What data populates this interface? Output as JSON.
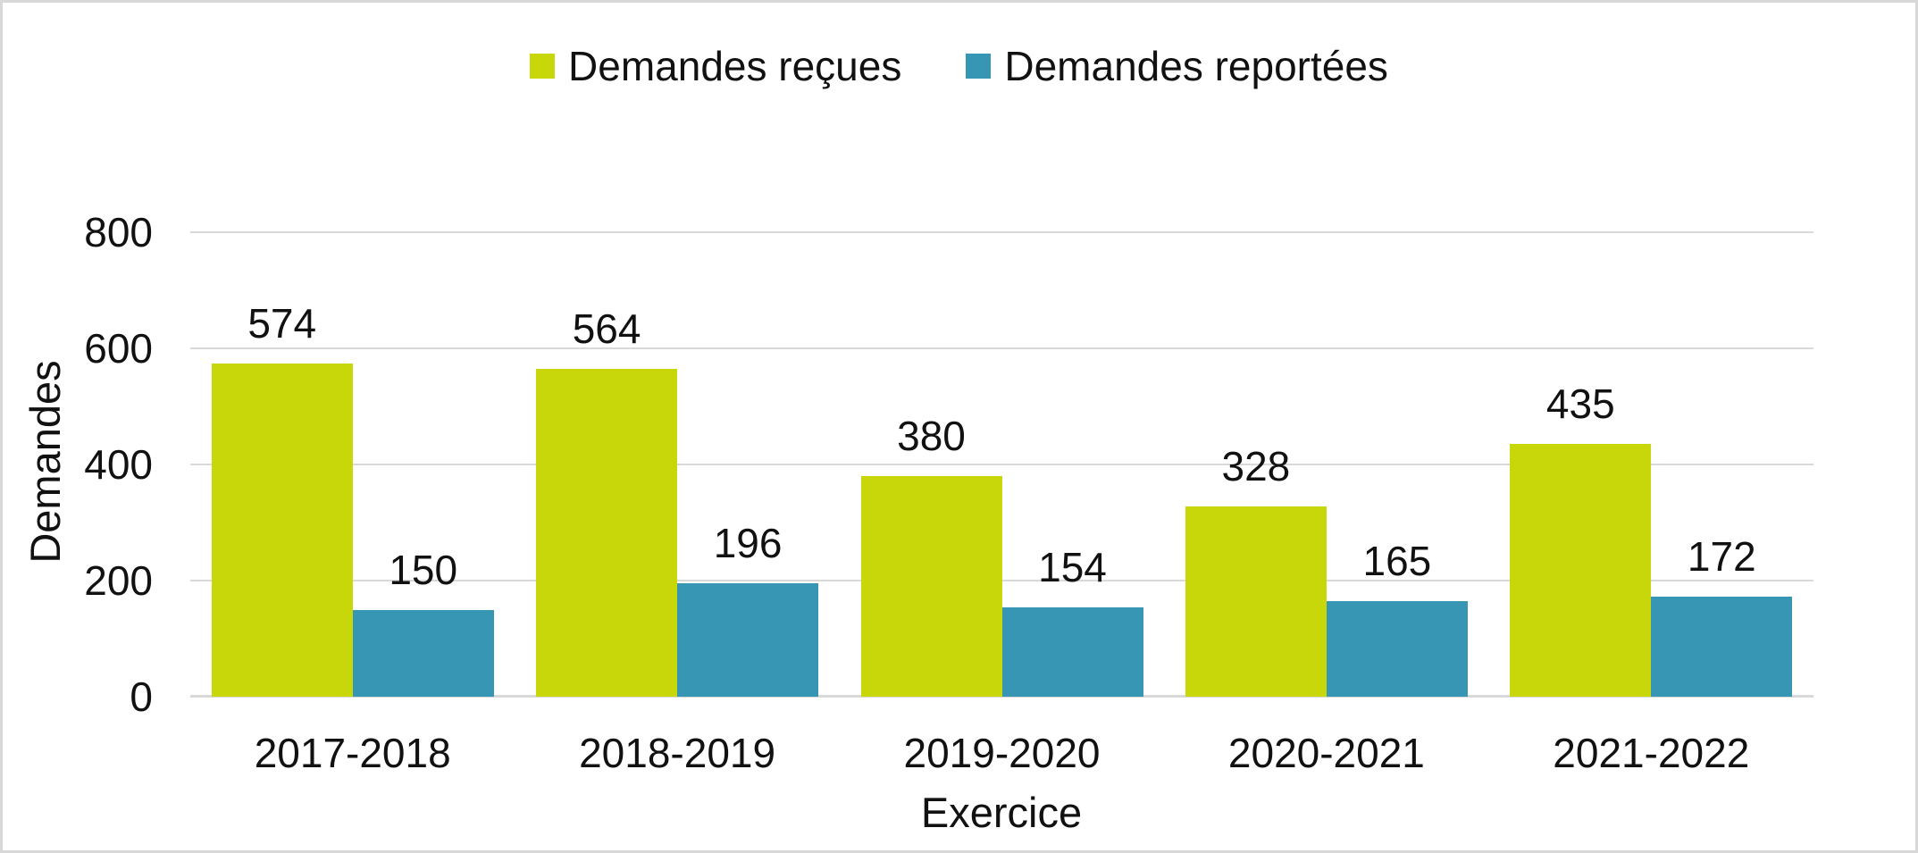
{
  "frame": {
    "background": "#FFFFFF",
    "border_color": "#D8D8D8"
  },
  "legend": {
    "items": [
      {
        "label": "Demandes reçues",
        "color": "#C8D70A"
      },
      {
        "label": "Demandes reportées",
        "color": "#3696B3"
      }
    ]
  },
  "chart_data": {
    "type": "bar",
    "categories": [
      "2017-2018",
      "2018-2019",
      "2019-2020",
      "2020-2021",
      "2021-2022"
    ],
    "series": [
      {
        "name": "Demandes reçues",
        "color": "#C8D70A",
        "values": [
          574,
          564,
          380,
          328,
          435
        ]
      },
      {
        "name": "Demandes reportées",
        "color": "#3696B3",
        "values": [
          150,
          196,
          154,
          165,
          172
        ]
      }
    ],
    "title": "",
    "xlabel": "Exercice",
    "ylabel": "Demandes",
    "ylim": [
      0,
      800
    ],
    "yticks": [
      0,
      200,
      400,
      600,
      800
    ],
    "grid": "horizontal",
    "gridline_color": "#D9D9D9",
    "legend_position": "top",
    "text_color": "#111111",
    "data_labels": true
  }
}
